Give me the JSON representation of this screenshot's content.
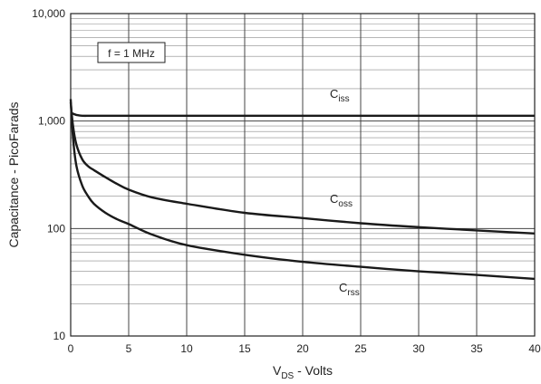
{
  "chart_data": {
    "type": "line",
    "xlabel_main": "V",
    "xlabel_sub": "DS",
    "xlabel_suffix": " - Volts",
    "ylabel": "Capacitance - PicoFarads",
    "xlim": [
      0,
      40
    ],
    "ylim": [
      10,
      10000
    ],
    "y_scale": "log",
    "grid": true,
    "x_ticks": [
      0,
      5,
      10,
      15,
      20,
      25,
      30,
      35,
      40
    ],
    "x_tick_labels": [
      "0",
      "5",
      "10",
      "15",
      "20",
      "25",
      "30",
      "35",
      "40"
    ],
    "y_major_ticks": [
      10,
      100,
      1000,
      10000
    ],
    "y_tick_labels": [
      "10",
      "100",
      "1,000",
      "10,000"
    ],
    "annotation": "f = 1 MHz",
    "series": [
      {
        "name_main": "C",
        "name_sub": "iss",
        "color": "#1a1a1a",
        "x": [
          0,
          0.3,
          0.5,
          1,
          2,
          5,
          10,
          20,
          30,
          40
        ],
        "y": [
          1200,
          1160,
          1140,
          1120,
          1120,
          1120,
          1120,
          1120,
          1120,
          1120
        ]
      },
      {
        "name_main": "C",
        "name_sub": "oss",
        "color": "#1a1a1a",
        "x": [
          0,
          0.2,
          0.5,
          1,
          1.5,
          2,
          3,
          4,
          5,
          7,
          10,
          15,
          20,
          25,
          30,
          35,
          40
        ],
        "y": [
          1500,
          900,
          600,
          440,
          380,
          350,
          300,
          260,
          230,
          195,
          170,
          140,
          125,
          112,
          103,
          96,
          90
        ]
      },
      {
        "name_main": "C",
        "name_sub": "rss",
        "color": "#1a1a1a",
        "x": [
          0,
          0.2,
          0.5,
          1,
          1.5,
          2,
          3,
          4,
          5,
          7,
          10,
          15,
          20,
          25,
          30,
          35,
          40
        ],
        "y": [
          1600,
          700,
          380,
          250,
          200,
          170,
          140,
          122,
          110,
          88,
          70,
          57,
          49,
          44,
          40,
          37,
          34
        ]
      }
    ]
  }
}
